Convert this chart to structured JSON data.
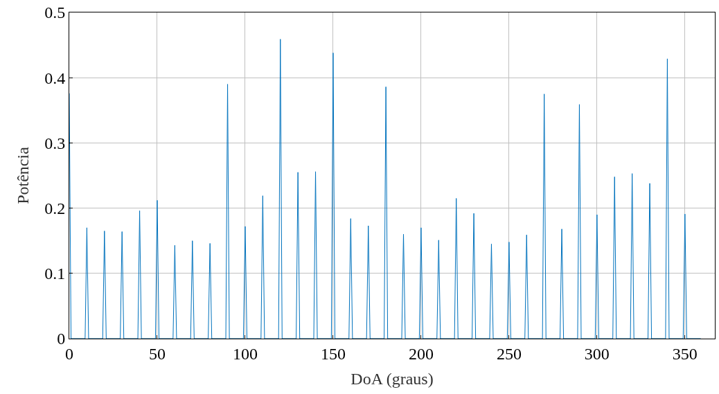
{
  "chart_data": {
    "type": "line",
    "xlabel": "DoA (graus)",
    "ylabel": "Potência",
    "x": [
      0,
      1,
      9,
      10,
      11,
      19,
      20,
      21,
      29,
      30,
      31,
      39,
      40,
      41,
      49,
      50,
      51,
      59,
      60,
      61,
      69,
      70,
      71,
      79,
      80,
      81,
      89,
      90,
      91,
      99,
      100,
      101,
      109,
      110,
      111,
      119,
      120,
      121,
      129,
      130,
      131,
      139,
      140,
      141,
      149,
      150,
      151,
      159,
      160,
      161,
      169,
      170,
      171,
      179,
      180,
      181,
      189,
      190,
      191,
      199,
      200,
      201,
      209,
      210,
      211,
      219,
      220,
      221,
      229,
      230,
      231,
      239,
      240,
      241,
      249,
      250,
      251,
      259,
      260,
      261,
      269,
      270,
      271,
      279,
      280,
      281,
      289,
      290,
      291,
      299,
      300,
      301,
      309,
      310,
      311,
      319,
      320,
      321,
      329,
      330,
      331,
      339,
      340,
      341,
      349,
      350,
      351,
      359
    ],
    "series": [
      {
        "color": "#0072bd",
        "values": [
          0.376,
          0,
          0,
          0.17,
          0,
          0,
          0.165,
          0,
          0,
          0.164,
          0,
          0,
          0.196,
          0,
          0,
          0.212,
          0,
          0,
          0.143,
          0,
          0,
          0.15,
          0,
          0,
          0.146,
          0,
          0,
          0.39,
          0,
          0,
          0.172,
          0,
          0,
          0.219,
          0,
          0,
          0.459,
          0,
          0,
          0.255,
          0,
          0,
          0.256,
          0,
          0,
          0.438,
          0,
          0,
          0.184,
          0,
          0,
          0.173,
          0,
          0,
          0.386,
          0,
          0,
          0.16,
          0,
          0,
          0.17,
          0,
          0,
          0.151,
          0,
          0,
          0.215,
          0,
          0,
          0.192,
          0,
          0,
          0.145,
          0,
          0,
          0.148,
          0,
          0,
          0.159,
          0,
          0,
          0.375,
          0,
          0,
          0.168,
          0,
          0,
          0.359,
          0,
          0,
          0.19,
          0,
          0,
          0.248,
          0,
          0,
          0.253,
          0,
          0,
          0.238,
          0,
          0,
          0.429,
          0,
          0,
          0.191,
          0,
          0
        ]
      }
    ],
    "xlim": [
      0,
      367
    ],
    "xticks": [
      0,
      50,
      100,
      150,
      200,
      250,
      300,
      350
    ],
    "ylim": [
      0,
      0.5
    ],
    "yticks": [
      0,
      0.1,
      0.2,
      0.3,
      0.4,
      0.5
    ],
    "grid": true
  }
}
